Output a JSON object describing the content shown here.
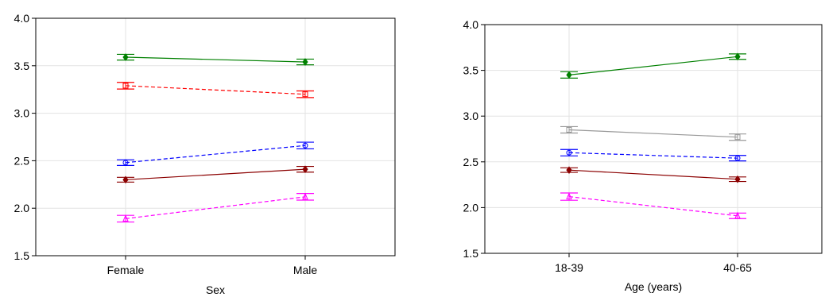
{
  "chart_data": [
    {
      "type": "line",
      "xlabel": "Sex",
      "ylabel": "",
      "categories": [
        "Female",
        "Male"
      ],
      "ylim": [
        1.5,
        4.0
      ],
      "yticks": [
        "1.5",
        "2.0",
        "2.5",
        "3.0",
        "3.5",
        "4.0"
      ],
      "grid": true,
      "legend": "none",
      "series": [
        {
          "color": "#008000",
          "dash": "solid",
          "marker": "diamond",
          "values": [
            3.59,
            3.54
          ],
          "err": [
            0.03,
            0.03
          ]
        },
        {
          "color": "#ff0000",
          "dash": "dashed",
          "marker": "square",
          "values": [
            3.29,
            3.2
          ],
          "err": [
            0.035,
            0.035
          ]
        },
        {
          "color": "#0000ff",
          "dash": "dashed",
          "marker": "circle",
          "values": [
            2.48,
            2.66
          ],
          "err": [
            0.03,
            0.035
          ]
        },
        {
          "color": "#8b0000",
          "dash": "solid",
          "marker": "diamond",
          "values": [
            2.3,
            2.41
          ],
          "err": [
            0.025,
            0.03
          ]
        },
        {
          "color": "#ff00ff",
          "dash": "dashed",
          "marker": "triangle",
          "values": [
            1.89,
            2.12
          ],
          "err": [
            0.035,
            0.035
          ]
        }
      ]
    },
    {
      "type": "line",
      "xlabel": "Age (years)",
      "ylabel": "",
      "categories": [
        "18-39",
        "40-65"
      ],
      "ylim": [
        1.5,
        4.0
      ],
      "yticks": [
        "1.5",
        "2.0",
        "2.5",
        "3.0",
        "3.5",
        "4.0"
      ],
      "grid": true,
      "legend": "none",
      "series": [
        {
          "color": "#008000",
          "dash": "solid",
          "marker": "diamond",
          "values": [
            3.45,
            3.65
          ],
          "err": [
            0.035,
            0.03
          ]
        },
        {
          "color": "#999999",
          "dash": "solid",
          "marker": "square",
          "values": [
            2.85,
            2.77
          ],
          "err": [
            0.035,
            0.035
          ]
        },
        {
          "color": "#0000ff",
          "dash": "dashed",
          "marker": "circle",
          "values": [
            2.6,
            2.54
          ],
          "err": [
            0.035,
            0.03
          ]
        },
        {
          "color": "#8b0000",
          "dash": "solid",
          "marker": "diamond",
          "values": [
            2.41,
            2.31
          ],
          "err": [
            0.025,
            0.025
          ]
        },
        {
          "color": "#ff00ff",
          "dash": "dashed",
          "marker": "triangle",
          "values": [
            2.12,
            1.91
          ],
          "err": [
            0.04,
            0.03
          ]
        }
      ]
    }
  ]
}
